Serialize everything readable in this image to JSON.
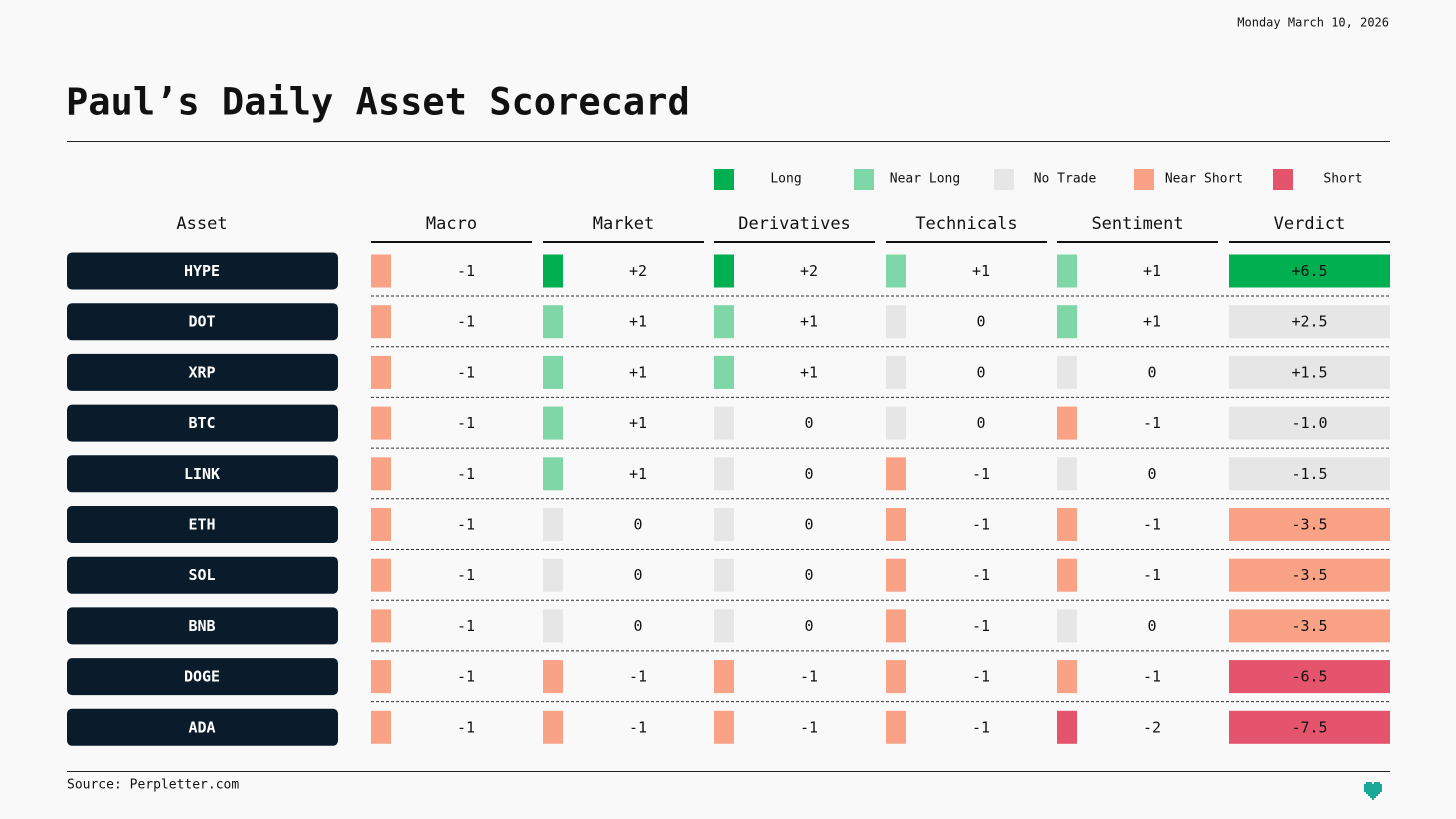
{
  "header": {
    "date": "Monday March 10, 2026",
    "title": "Paul’s Daily Asset Scorecard"
  },
  "legend": [
    {
      "label": "Long",
      "color": "#00b050"
    },
    {
      "label": "Near Long",
      "color": "#7fd6a6"
    },
    {
      "label": "No Trade",
      "color": "#e6e6e6"
    },
    {
      "label": "Near Short",
      "color": "#f9a286"
    },
    {
      "label": "Short",
      "color": "#e4546c"
    }
  ],
  "table": {
    "columns": [
      "Asset",
      "Macro",
      "Market",
      "Derivatives",
      "Technicals",
      "Sentiment",
      "Verdict"
    ],
    "rows": [
      {
        "asset": "HYPE",
        "scores": [
          {
            "text": "-1",
            "color": "#f9a286"
          },
          {
            "text": "+2",
            "color": "#00b050"
          },
          {
            "text": "+2",
            "color": "#00b050"
          },
          {
            "text": "+1",
            "color": "#7fd6a6"
          },
          {
            "text": "+1",
            "color": "#7fd6a6"
          }
        ],
        "verdict": {
          "text": "+6.5",
          "color": "#00b050"
        }
      },
      {
        "asset": "DOT",
        "scores": [
          {
            "text": "-1",
            "color": "#f9a286"
          },
          {
            "text": "+1",
            "color": "#7fd6a6"
          },
          {
            "text": "+1",
            "color": "#7fd6a6"
          },
          {
            "text": "0",
            "color": "#e6e6e6"
          },
          {
            "text": "+1",
            "color": "#7fd6a6"
          }
        ],
        "verdict": {
          "text": "+2.5",
          "color": "#e6e6e6"
        }
      },
      {
        "asset": "XRP",
        "scores": [
          {
            "text": "-1",
            "color": "#f9a286"
          },
          {
            "text": "+1",
            "color": "#7fd6a6"
          },
          {
            "text": "+1",
            "color": "#7fd6a6"
          },
          {
            "text": "0",
            "color": "#e6e6e6"
          },
          {
            "text": "0",
            "color": "#e6e6e6"
          }
        ],
        "verdict": {
          "text": "+1.5",
          "color": "#e6e6e6"
        }
      },
      {
        "asset": "BTC",
        "scores": [
          {
            "text": "-1",
            "color": "#f9a286"
          },
          {
            "text": "+1",
            "color": "#7fd6a6"
          },
          {
            "text": "0",
            "color": "#e6e6e6"
          },
          {
            "text": "0",
            "color": "#e6e6e6"
          },
          {
            "text": "-1",
            "color": "#f9a286"
          }
        ],
        "verdict": {
          "text": "-1.0",
          "color": "#e6e6e6"
        }
      },
      {
        "asset": "LINK",
        "scores": [
          {
            "text": "-1",
            "color": "#f9a286"
          },
          {
            "text": "+1",
            "color": "#7fd6a6"
          },
          {
            "text": "0",
            "color": "#e6e6e6"
          },
          {
            "text": "-1",
            "color": "#f9a286"
          },
          {
            "text": "0",
            "color": "#e6e6e6"
          }
        ],
        "verdict": {
          "text": "-1.5",
          "color": "#e6e6e6"
        }
      },
      {
        "asset": "ETH",
        "scores": [
          {
            "text": "-1",
            "color": "#f9a286"
          },
          {
            "text": "0",
            "color": "#e6e6e6"
          },
          {
            "text": "0",
            "color": "#e6e6e6"
          },
          {
            "text": "-1",
            "color": "#f9a286"
          },
          {
            "text": "-1",
            "color": "#f9a286"
          }
        ],
        "verdict": {
          "text": "-3.5",
          "color": "#f9a286"
        }
      },
      {
        "asset": "SOL",
        "scores": [
          {
            "text": "-1",
            "color": "#f9a286"
          },
          {
            "text": "0",
            "color": "#e6e6e6"
          },
          {
            "text": "0",
            "color": "#e6e6e6"
          },
          {
            "text": "-1",
            "color": "#f9a286"
          },
          {
            "text": "-1",
            "color": "#f9a286"
          }
        ],
        "verdict": {
          "text": "-3.5",
          "color": "#f9a286"
        }
      },
      {
        "asset": "BNB",
        "scores": [
          {
            "text": "-1",
            "color": "#f9a286"
          },
          {
            "text": "0",
            "color": "#e6e6e6"
          },
          {
            "text": "0",
            "color": "#e6e6e6"
          },
          {
            "text": "-1",
            "color": "#f9a286"
          },
          {
            "text": "0",
            "color": "#e6e6e6"
          }
        ],
        "verdict": {
          "text": "-3.5",
          "color": "#f9a286"
        }
      },
      {
        "asset": "DOGE",
        "scores": [
          {
            "text": "-1",
            "color": "#f9a286"
          },
          {
            "text": "-1",
            "color": "#f9a286"
          },
          {
            "text": "-1",
            "color": "#f9a286"
          },
          {
            "text": "-1",
            "color": "#f9a286"
          },
          {
            "text": "-1",
            "color": "#f9a286"
          }
        ],
        "verdict": {
          "text": "-6.5",
          "color": "#e4546c"
        }
      },
      {
        "asset": "ADA",
        "scores": [
          {
            "text": "-1",
            "color": "#f9a286"
          },
          {
            "text": "-1",
            "color": "#f9a286"
          },
          {
            "text": "-1",
            "color": "#f9a286"
          },
          {
            "text": "-1",
            "color": "#f9a286"
          },
          {
            "text": "-2",
            "color": "#e4546c"
          }
        ],
        "verdict": {
          "text": "-7.5",
          "color": "#e4546c"
        }
      }
    ]
  },
  "footer": {
    "source": "Source: Perpletter.com"
  }
}
